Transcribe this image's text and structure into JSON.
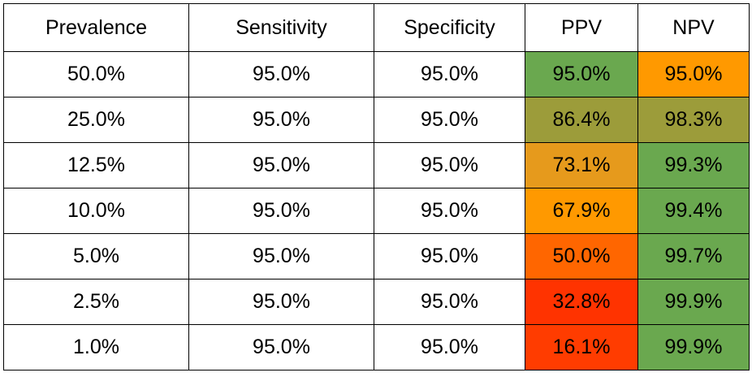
{
  "table": {
    "header": [
      "Prevalence",
      "Sensitivity",
      "Specificity",
      "PPV",
      "NPV"
    ],
    "rows": [
      [
        "50.0%",
        "95.0%",
        "95.0%",
        "95.0%",
        "95.0%"
      ],
      [
        "25.0%",
        "95.0%",
        "95.0%",
        "86.4%",
        "98.3%"
      ],
      [
        "12.5%",
        "95.0%",
        "95.0%",
        "73.1%",
        "99.3%"
      ],
      [
        "10.0%",
        "95.0%",
        "95.0%",
        "67.9%",
        "99.4%"
      ],
      [
        "5.0%",
        "95.0%",
        "95.0%",
        "50.0%",
        "99.7%"
      ],
      [
        "2.5%",
        "95.0%",
        "95.0%",
        "32.8%",
        "99.9%"
      ],
      [
        "1.0%",
        "95.0%",
        "95.0%",
        "16.1%",
        "99.9%"
      ]
    ]
  }
}
